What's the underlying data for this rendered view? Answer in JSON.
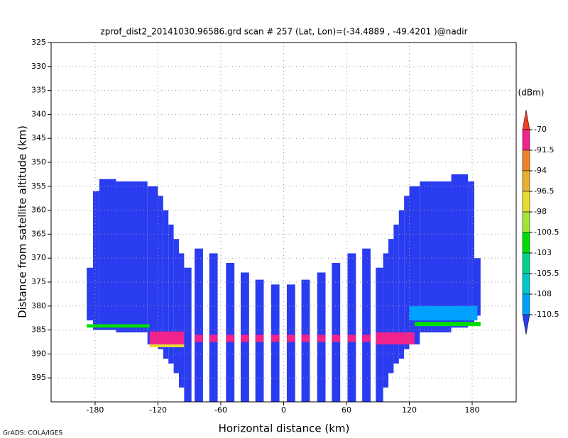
{
  "chart_data": {
    "type": "heatmap",
    "title": "zprof_dist2_20141030.96586.grd  scan # 257  (Lat, Lon)=(-34.4889 , -49.4201 )@nadir",
    "x_label": "Horizontal distance (km)",
    "y_label": "Distance from satellite altitude (km)",
    "footer": "GrADS: COLA/IGES",
    "xlim": [
      -222,
      222
    ],
    "xticks": [
      -180,
      -120,
      -60,
      0,
      60,
      120,
      180
    ],
    "ylim": [
      325,
      400
    ],
    "y_inverted": true,
    "yticks": [
      325,
      330,
      335,
      340,
      345,
      350,
      355,
      360,
      365,
      370,
      375,
      380,
      385,
      390,
      395
    ],
    "grid": true,
    "colorbar": {
      "units": "(dBm)",
      "levels": [
        -70,
        -91.5,
        -94,
        -96.5,
        -98,
        -100.5,
        -103,
        -105.5,
        -108,
        -110.5
      ],
      "colors": [
        "#f03c28",
        "#f0228c",
        "#f08228",
        "#e6af2d",
        "#e6dc32",
        "#a0e632",
        "#00dc00",
        "#00d28c",
        "#00c8c8",
        "#00a0ff",
        "#2a3cf0"
      ]
    },
    "cells": [
      {
        "x0": -188,
        "x1": -182,
        "y0": 372,
        "y1": 383,
        "value": -112
      },
      {
        "x0": -182,
        "x1": -176,
        "y0": 356,
        "y1": 385,
        "value": -112
      },
      {
        "x0": -176,
        "x1": -160,
        "y0": 353.5,
        "y1": 385,
        "value": -112
      },
      {
        "x0": -160,
        "x1": -130,
        "y0": 354,
        "y1": 385.5,
        "value": -112
      },
      {
        "x0": -130,
        "x1": -120,
        "y0": 355,
        "y1": 388,
        "value": -112
      },
      {
        "x0": -120,
        "x1": -115,
        "y0": 357,
        "y1": 389,
        "value": -112
      },
      {
        "x0": -115,
        "x1": -110,
        "y0": 360,
        "y1": 391,
        "value": -112
      },
      {
        "x0": -110,
        "x1": -105,
        "y0": 363,
        "y1": 392,
        "value": -112
      },
      {
        "x0": -105,
        "x1": -100,
        "y0": 366,
        "y1": 394,
        "value": -112
      },
      {
        "x0": -100,
        "x1": -95,
        "y0": 369,
        "y1": 397,
        "value": -112
      },
      {
        "x0": -95,
        "x1": -88,
        "y0": 372,
        "y1": 400,
        "value": -112
      },
      {
        "x0": -85,
        "x1": -77,
        "y0": 368,
        "y1": 400,
        "value": -112
      },
      {
        "x0": -71,
        "x1": -63,
        "y0": 369,
        "y1": 400,
        "value": -112
      },
      {
        "x0": -55,
        "x1": -47,
        "y0": 371,
        "y1": 400,
        "value": -112
      },
      {
        "x0": -41,
        "x1": -33,
        "y0": 373,
        "y1": 400,
        "value": -112
      },
      {
        "x0": -27,
        "x1": -19,
        "y0": 374.5,
        "y1": 400,
        "value": -112
      },
      {
        "x0": -12,
        "x1": -4,
        "y0": 375.5,
        "y1": 400,
        "value": -112
      },
      {
        "x0": 3,
        "x1": 11,
        "y0": 375.5,
        "y1": 400,
        "value": -112
      },
      {
        "x0": 17,
        "x1": 25,
        "y0": 374.5,
        "y1": 400,
        "value": -112
      },
      {
        "x0": 32,
        "x1": 40,
        "y0": 373,
        "y1": 400,
        "value": -112
      },
      {
        "x0": 46,
        "x1": 54,
        "y0": 371,
        "y1": 400,
        "value": -112
      },
      {
        "x0": 61,
        "x1": 69,
        "y0": 369,
        "y1": 400,
        "value": -112
      },
      {
        "x0": 75,
        "x1": 83,
        "y0": 368,
        "y1": 400,
        "value": -112
      },
      {
        "x0": 88,
        "x1": 95,
        "y0": 372,
        "y1": 400,
        "value": -112
      },
      {
        "x0": 95,
        "x1": 100,
        "y0": 369,
        "y1": 397,
        "value": -112
      },
      {
        "x0": 100,
        "x1": 105,
        "y0": 366,
        "y1": 394,
        "value": -112
      },
      {
        "x0": 105,
        "x1": 110,
        "y0": 363,
        "y1": 392,
        "value": -112
      },
      {
        "x0": 110,
        "x1": 115,
        "y0": 360,
        "y1": 391,
        "value": -112
      },
      {
        "x0": 115,
        "x1": 120,
        "y0": 357,
        "y1": 389,
        "value": -112
      },
      {
        "x0": 120,
        "x1": 130,
        "y0": 355,
        "y1": 388,
        "value": -112
      },
      {
        "x0": 130,
        "x1": 160,
        "y0": 354,
        "y1": 385.5,
        "value": -112
      },
      {
        "x0": 160,
        "x1": 176,
        "y0": 352.5,
        "y1": 384.5,
        "value": -112
      },
      {
        "x0": 176,
        "x1": 182,
        "y0": 354,
        "y1": 384,
        "value": -112
      },
      {
        "x0": 182,
        "x1": 188,
        "y0": 370,
        "y1": 382,
        "value": -112
      },
      {
        "x0": 120,
        "x1": 185,
        "y0": 380,
        "y1": 383,
        "value": -109
      },
      {
        "x0": -188,
        "x1": -128,
        "y0": 383.8,
        "y1": 384.5,
        "value": -102
      },
      {
        "x0": 125,
        "x1": 188,
        "y0": 383.3,
        "y1": 384.2,
        "value": -102
      },
      {
        "x0": -128,
        "x1": -95,
        "y0": 385.3,
        "y1": 388,
        "value": -80
      },
      {
        "x0": -128,
        "x1": -95,
        "y0": 388,
        "y1": 388.6,
        "value": -97
      },
      {
        "x0": 88,
        "x1": 125,
        "y0": 385.5,
        "y1": 388,
        "value": -80
      },
      {
        "x0": -85,
        "x1": -77,
        "y0": 386,
        "y1": 387.5,
        "value": -80
      },
      {
        "x0": -71,
        "x1": -63,
        "y0": 386,
        "y1": 387.5,
        "value": -80
      },
      {
        "x0": -55,
        "x1": -47,
        "y0": 386,
        "y1": 387.5,
        "value": -80
      },
      {
        "x0": -41,
        "x1": -33,
        "y0": 386,
        "y1": 387.5,
        "value": -80
      },
      {
        "x0": -27,
        "x1": -19,
        "y0": 386,
        "y1": 387.5,
        "value": -80
      },
      {
        "x0": -12,
        "x1": -4,
        "y0": 386,
        "y1": 387.5,
        "value": -80
      },
      {
        "x0": 3,
        "x1": 11,
        "y0": 386,
        "y1": 387.5,
        "value": -80
      },
      {
        "x0": 17,
        "x1": 25,
        "y0": 386,
        "y1": 387.5,
        "value": -80
      },
      {
        "x0": 32,
        "x1": 40,
        "y0": 386,
        "y1": 387.5,
        "value": -80
      },
      {
        "x0": 46,
        "x1": 54,
        "y0": 386,
        "y1": 387.5,
        "value": -80
      },
      {
        "x0": 61,
        "x1": 69,
        "y0": 386,
        "y1": 387.5,
        "value": -80
      },
      {
        "x0": 75,
        "x1": 83,
        "y0": 386,
        "y1": 387.5,
        "value": -80
      }
    ]
  }
}
